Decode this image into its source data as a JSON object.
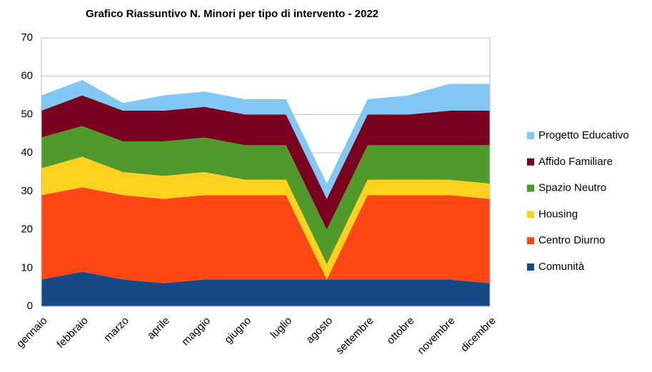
{
  "chart_data": {
    "type": "stacked-area",
    "title": "Grafico Riassuntivo N. Minori per tipo di intervento - 2022",
    "categories": [
      "gennaio",
      "febbraio",
      "marzo",
      "aprile",
      "maggio",
      "giugno",
      "luglio",
      "agosto",
      "settembre",
      "ottobre",
      "novembre",
      "dicembre"
    ],
    "series": [
      {
        "name": "Comunità",
        "color": "#174a85",
        "values": [
          7,
          9,
          7,
          6,
          7,
          7,
          7,
          7,
          7,
          7,
          7,
          6
        ]
      },
      {
        "name": "Centro Diurno",
        "color": "#ff4713",
        "values": [
          22,
          22,
          22,
          22,
          22,
          22,
          22,
          0,
          22,
          22,
          22,
          22
        ]
      },
      {
        "name": "Housing",
        "color": "#ffd21f",
        "values": [
          7,
          8,
          6,
          6,
          6,
          4,
          4,
          4,
          4,
          4,
          4,
          4
        ]
      },
      {
        "name": "Spazio Neutro",
        "color": "#4f9a2a",
        "values": [
          8,
          8,
          8,
          9,
          9,
          9,
          9,
          9,
          9,
          9,
          9,
          10
        ]
      },
      {
        "name": "Affido Familiare",
        "color": "#7a0020",
        "values": [
          7,
          8,
          8,
          8,
          8,
          8,
          8,
          8,
          8,
          8,
          9,
          9
        ]
      },
      {
        "name": "Progetto Educativo",
        "color": "#82c8f6",
        "values": [
          4,
          4,
          2,
          4,
          4,
          4,
          4,
          4,
          4,
          5,
          7,
          7
        ]
      }
    ],
    "ylim": [
      0,
      70
    ],
    "yticks": [
      0,
      10,
      20,
      30,
      40,
      50,
      60,
      70
    ],
    "grid": true
  }
}
